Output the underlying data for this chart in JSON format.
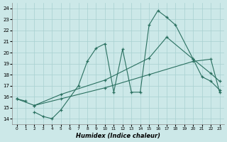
{
  "xlabel": "Humidex (Indice chaleur)",
  "ylim": [
    13.5,
    24.5
  ],
  "xlim": [
    -0.5,
    23.5
  ],
  "yticks": [
    14,
    15,
    16,
    17,
    18,
    19,
    20,
    21,
    22,
    23,
    24
  ],
  "xticks": [
    0,
    1,
    2,
    3,
    4,
    5,
    6,
    7,
    8,
    9,
    10,
    11,
    12,
    13,
    14,
    15,
    16,
    17,
    18,
    19,
    20,
    21,
    22,
    23
  ],
  "bg_color": "#cce8e8",
  "grid_color": "#a8d0d0",
  "line_color": "#2a7060",
  "series": [
    {
      "x": [
        0,
        1
      ],
      "y": [
        15.8,
        15.6
      ]
    },
    {
      "x": [
        2,
        3,
        4,
        5,
        7,
        8,
        9,
        10,
        11,
        12,
        13,
        14,
        15,
        16,
        17,
        18,
        20,
        22,
        23
      ],
      "y": [
        14.6,
        14.2,
        14.0,
        14.8,
        17.0,
        19.2,
        20.4,
        20.8,
        16.4,
        20.3,
        16.4,
        16.4,
        22.5,
        23.8,
        23.2,
        22.5,
        19.4,
        18.1,
        17.4
      ]
    },
    {
      "x": [
        0,
        2,
        5,
        10,
        15,
        20,
        22,
        23
      ],
      "y": [
        15.8,
        15.2,
        15.8,
        16.8,
        18.0,
        19.2,
        19.4,
        16.4
      ]
    },
    {
      "x": [
        2,
        5,
        10,
        15,
        17,
        20,
        21,
        22,
        23
      ],
      "y": [
        15.2,
        16.2,
        17.5,
        19.5,
        21.4,
        19.4,
        17.8,
        17.4,
        16.6
      ]
    }
  ]
}
